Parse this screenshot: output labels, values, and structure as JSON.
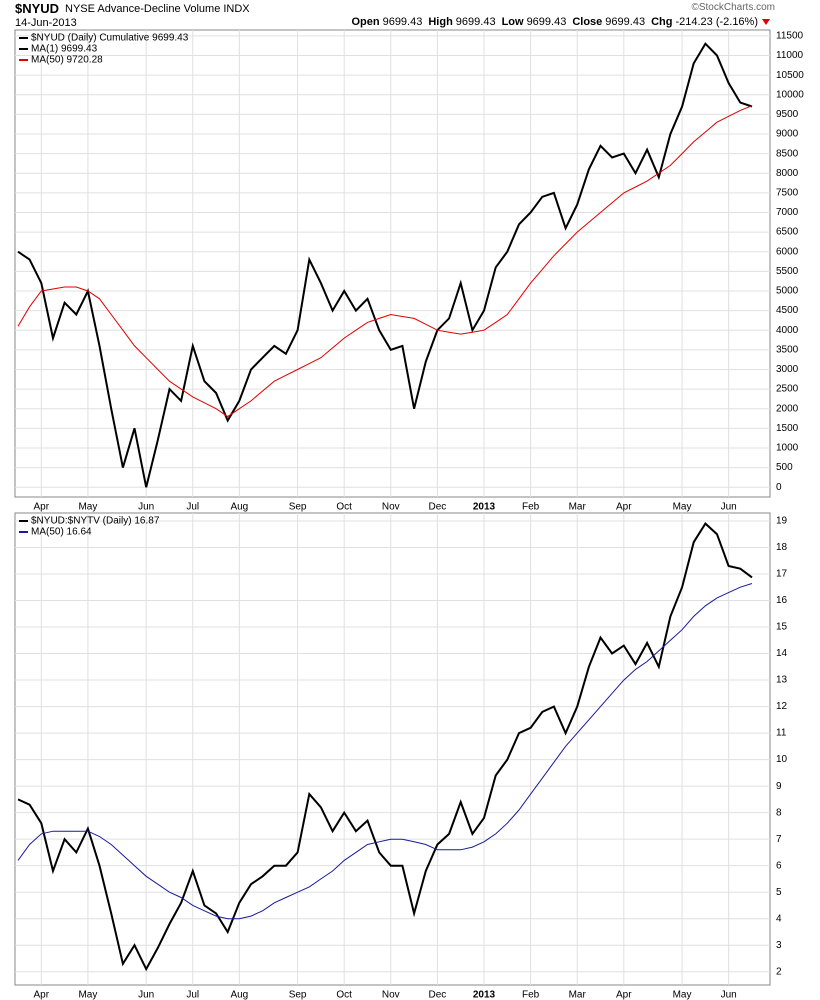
{
  "header": {
    "symbol": "$NYUD",
    "name": "NYSE Advance-Decline Volume INDX",
    "date": "14-Jun-2013",
    "quote": [
      {
        "label": "Open",
        "value": "9699.43"
      },
      {
        "label": "High",
        "value": "9699.43"
      },
      {
        "label": "Low",
        "value": "9699.43"
      },
      {
        "label": "Close",
        "value": "9699.43"
      },
      {
        "label": "Chg",
        "value": "-214.23 (-2.16%)"
      }
    ],
    "source": "©StockCharts.com"
  },
  "chart_data": [
    {
      "type": "line",
      "categories": [
        null,
        null,
        "Apr",
        null,
        null,
        null,
        "May",
        null,
        null,
        null,
        null,
        "Jun",
        null,
        null,
        null,
        "Jul",
        null,
        null,
        null,
        "Aug",
        null,
        null,
        null,
        null,
        "Sep",
        null,
        null,
        null,
        "Oct",
        null,
        null,
        null,
        "Nov",
        null,
        null,
        null,
        "Dec",
        null,
        null,
        null,
        "2013",
        null,
        null,
        null,
        "Feb",
        null,
        null,
        null,
        "Mar",
        null,
        null,
        null,
        "Apr",
        null,
        null,
        null,
        null,
        "May",
        null,
        null,
        null,
        "Jun",
        null,
        null
      ],
      "legend_extra": "MA(1) 9699.43",
      "series": [
        {
          "name": "$NYUD (Daily) Cumulative 9699.43",
          "color": "#000000",
          "values": [
            6000,
            5800,
            5200,
            3800,
            4700,
            4400,
            5000,
            3600,
            2000,
            500,
            1500,
            0,
            1200,
            2500,
            2200,
            3600,
            2700,
            2400,
            1700,
            2200,
            3000,
            3300,
            3600,
            3400,
            4000,
            5800,
            5200,
            4500,
            5000,
            4500,
            4800,
            4000,
            3500,
            3600,
            2000,
            3200,
            4000,
            4300,
            5200,
            4000,
            4500,
            5600,
            6000,
            6700,
            7000,
            7400,
            7500,
            6600,
            7200,
            8100,
            8700,
            8400,
            8500,
            8000,
            8600,
            7900,
            9000,
            9700,
            10800,
            11300,
            11000,
            10300,
            9800,
            9700
          ]
        },
        {
          "name": "MA(50) 9720.28",
          "color": "#e00000",
          "values": [
            4100,
            4600,
            5000,
            5050,
            5100,
            5100,
            5000,
            4800,
            4400,
            4000,
            3600,
            3300,
            3000,
            2700,
            2500,
            2300,
            2150,
            2000,
            1800,
            2000,
            2200,
            2450,
            2700,
            2850,
            3000,
            3150,
            3300,
            3550,
            3800,
            4000,
            4200,
            4300,
            4400,
            4350,
            4300,
            4150,
            4000,
            3950,
            3900,
            3950,
            4000,
            4200,
            4400,
            4800,
            5200,
            5550,
            5900,
            6200,
            6500,
            6750,
            7000,
            7250,
            7500,
            7650,
            7800,
            8000,
            8200,
            8500,
            8800,
            9050,
            9300,
            9450,
            9600,
            9720
          ]
        }
      ],
      "ylim": [
        -250,
        11650
      ],
      "yticks": [
        0,
        500,
        1000,
        1500,
        2000,
        2500,
        3000,
        3500,
        4000,
        4500,
        5000,
        5500,
        6000,
        6500,
        7000,
        7500,
        8000,
        8500,
        9000,
        9500,
        10000,
        10500,
        11000,
        11500
      ],
      "grid": true
    },
    {
      "type": "line",
      "categories": [
        null,
        null,
        "Apr",
        null,
        null,
        null,
        "May",
        null,
        null,
        null,
        null,
        "Jun",
        null,
        null,
        null,
        "Jul",
        null,
        null,
        null,
        "Aug",
        null,
        null,
        null,
        null,
        "Sep",
        null,
        null,
        null,
        "Oct",
        null,
        null,
        null,
        "Nov",
        null,
        null,
        null,
        "Dec",
        null,
        null,
        null,
        "2013",
        null,
        null,
        null,
        "Feb",
        null,
        null,
        null,
        "Mar",
        null,
        null,
        null,
        "Apr",
        null,
        null,
        null,
        null,
        "May",
        null,
        null,
        null,
        "Jun",
        null,
        null
      ],
      "series": [
        {
          "name": "$NYUD:$NYTV (Daily) 16.87",
          "color": "#000000",
          "values": [
            8.5,
            8.3,
            7.6,
            5.8,
            7,
            6.5,
            7.4,
            6,
            4.2,
            2.3,
            3,
            2.1,
            2.9,
            3.8,
            4.6,
            5.8,
            4.5,
            4.2,
            3.5,
            4.6,
            5.3,
            5.6,
            6,
            6,
            6.5,
            8.7,
            8.2,
            7.3,
            8,
            7.3,
            7.7,
            6.5,
            6,
            6,
            4.2,
            5.8,
            6.8,
            7.2,
            8.4,
            7.2,
            7.8,
            9.4,
            10,
            11,
            11.2,
            11.8,
            12,
            11,
            12,
            13.5,
            14.6,
            14,
            14.3,
            13.6,
            14.4,
            13.5,
            15.4,
            16.5,
            18.2,
            18.9,
            18.5,
            17.3,
            17.2,
            16.87
          ]
        },
        {
          "name": "MA(50) 16.64",
          "color": "#1a1a9c",
          "values": [
            6.2,
            6.8,
            7.2,
            7.3,
            7.3,
            7.3,
            7.3,
            7.1,
            6.8,
            6.4,
            6,
            5.6,
            5.3,
            5,
            4.8,
            4.5,
            4.3,
            4.1,
            4,
            4,
            4.1,
            4.3,
            4.6,
            4.8,
            5,
            5.2,
            5.5,
            5.8,
            6.2,
            6.5,
            6.8,
            6.9,
            7,
            7,
            6.9,
            6.8,
            6.6,
            6.6,
            6.6,
            6.7,
            6.9,
            7.2,
            7.6,
            8.1,
            8.7,
            9.3,
            9.9,
            10.5,
            11,
            11.5,
            12,
            12.5,
            13,
            13.4,
            13.7,
            14.1,
            14.5,
            14.9,
            15.4,
            15.8,
            16.1,
            16.3,
            16.5,
            16.64
          ]
        }
      ],
      "ylim": [
        1.5,
        19.3
      ],
      "yticks": [
        2,
        3,
        4,
        5,
        6,
        7,
        8,
        9,
        10,
        11,
        12,
        13,
        14,
        15,
        16,
        17,
        18,
        19
      ],
      "grid": true
    }
  ]
}
